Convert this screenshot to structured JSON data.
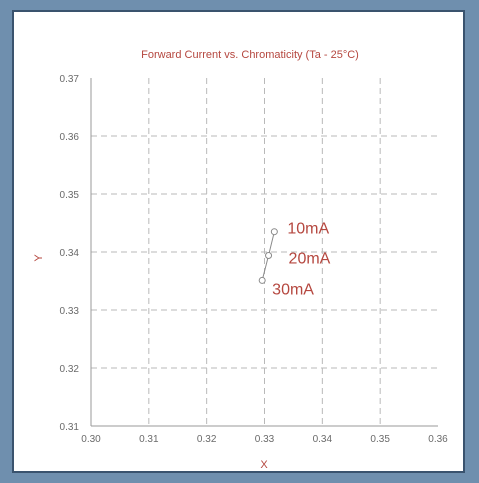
{
  "chart_data": {
    "type": "scatter",
    "title": "Forward Current vs. Chromaticity (Ta - 25°C)",
    "xlabel": "X",
    "ylabel": "Y",
    "xlim": [
      0.3,
      0.36
    ],
    "ylim": [
      0.31,
      0.37
    ],
    "x_ticks": [
      "0.30",
      "0.31",
      "0.32",
      "0.33",
      "0.34",
      "0.35",
      "0.36"
    ],
    "y_ticks": [
      "0.37",
      "0.36",
      "0.35",
      "0.34",
      "0.33",
      "0.32",
      "0.31"
    ],
    "grid": true,
    "series": [
      {
        "points": [
          {
            "x": 0.3317,
            "y": 0.3435,
            "label": "10mA"
          },
          {
            "x": 0.3307,
            "y": 0.3394,
            "label": "20mA"
          },
          {
            "x": 0.3296,
            "y": 0.3351,
            "label": "30mA"
          }
        ]
      }
    ],
    "colors": {
      "text_accent": "#b5473f",
      "grid": "#b9b9b9",
      "marker": "#8a8a8a"
    }
  }
}
